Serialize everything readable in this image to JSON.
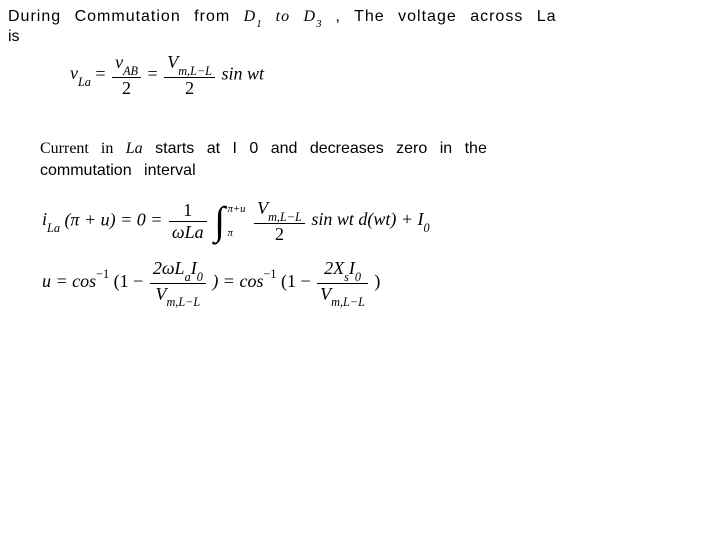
{
  "line1": {
    "pre": "During   Commutation   from",
    "diodes_from": "D",
    "diodes_from_sub": "1",
    "to_word": "to",
    "diodes_to": "D",
    "diodes_to_sub": "3",
    "post": ",  The   voltage   across   La"
  },
  "line1b": "is",
  "eq1": {
    "lhs_v": "v",
    "lhs_sub": "La",
    "eq": "=",
    "frac1_num_v": "v",
    "frac1_num_sub": "AB",
    "frac1_den": "2",
    "frac2_num_v": "V",
    "frac2_num_sub": "m,L−L",
    "frac2_den": "2",
    "tail": " sin wt"
  },
  "line2": {
    "pre": "Current   in",
    "La": "La",
    "mid": "starts   at   I 0   and   decreases   zero   in   the"
  },
  "line2b": "commutation   interval",
  "eq2": {
    "lhs_i": "i",
    "lhs_sub": "La",
    "lhs_arg": "(π + u) = 0 =",
    "frac_num": "1",
    "frac_den_w": "ω",
    "frac_den_L": "La",
    "int_hi": "π+u",
    "int_lo": "π",
    "inner_frac_num_V": "V",
    "inner_frac_num_sub": "m,L−L",
    "inner_frac_den": "2",
    "tail1": " sin wt d(wt) + I",
    "tail1_sub": "0"
  },
  "eq3": {
    "lhs": "u = cos",
    "sup": "−1",
    "open": "(1 − ",
    "frac1_num_a": "2ω",
    "frac1_num_L": "L",
    "frac1_num_Lsub": "a",
    "frac1_num_I": "I",
    "frac1_num_Isub": "0",
    "frac1_den_V": "V",
    "frac1_den_sub": "m,L−L",
    "mid": ") = cos",
    "open2": "(1 − ",
    "frac2_num_a": "2",
    "frac2_num_X": "X",
    "frac2_num_Xsub": "s",
    "frac2_num_I": "I",
    "frac2_num_Isub": "0",
    "frac2_den_V": "V",
    "frac2_den_sub": "m,L−L",
    "close": ")"
  }
}
